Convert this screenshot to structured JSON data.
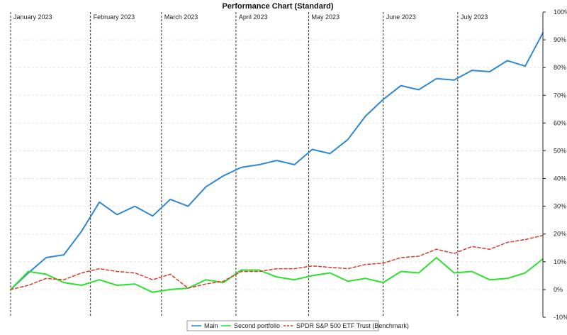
{
  "chart_data": {
    "type": "line",
    "title": "Performance Chart (Standard)",
    "xlabel": "",
    "ylabel": "",
    "ylim": [
      -10,
      100
    ],
    "yticks": [
      100,
      90,
      80,
      70,
      60,
      50,
      40,
      30,
      20,
      10,
      0,
      -10
    ],
    "ytick_labels": [
      "100%",
      "90%",
      "80%",
      "70%",
      "60%",
      "50%",
      "40%",
      "30%",
      "20%",
      "10%",
      "0%",
      "-10%"
    ],
    "months": [
      "January 2023",
      "February 2023",
      "March 2023",
      "April 2023",
      "May 2023",
      "June 2023",
      "July 2023"
    ],
    "month_start_index": [
      0,
      4.5,
      8.5,
      12.7,
      16.8,
      21,
      25.2
    ],
    "x_count": 30,
    "grid": true,
    "legend_position": "bottom-center",
    "series": [
      {
        "name": "Main",
        "color": "#2f86d2",
        "style": "solid",
        "values": [
          0,
          6,
          11.5,
          12.5,
          21,
          31.5,
          27,
          30,
          26.5,
          32.5,
          30,
          37,
          41,
          44,
          45,
          46.5,
          45,
          50.5,
          49,
          54,
          62.5,
          68.5,
          73.5,
          72,
          76,
          75.5,
          79,
          78.5,
          82.5,
          80.5,
          92.5
        ]
      },
      {
        "name": "Second portfolio",
        "color": "#2ee02e",
        "style": "solid",
        "values": [
          0,
          6.5,
          5.5,
          2.5,
          1.5,
          3.5,
          1.5,
          2,
          -1,
          0,
          0.5,
          3.5,
          2.5,
          7,
          7,
          4.5,
          3.5,
          5,
          6,
          3,
          4,
          2.5,
          6.5,
          6,
          11.5,
          6,
          6.5,
          3.5,
          4,
          6,
          11
        ]
      },
      {
        "name": "SPDR S&P 500 ETF Trust (Benchmark)",
        "color": "#d93a2b",
        "style": "dashed",
        "values": [
          0,
          1.5,
          4,
          3.5,
          6,
          7.5,
          6.5,
          6,
          3.5,
          5.5,
          0.5,
          2,
          3,
          6.5,
          6.5,
          7.5,
          7.5,
          8.5,
          8,
          7.5,
          9,
          9.5,
          11.5,
          12,
          14.5,
          13,
          15.5,
          14.5,
          17,
          18,
          19.5
        ]
      }
    ]
  }
}
